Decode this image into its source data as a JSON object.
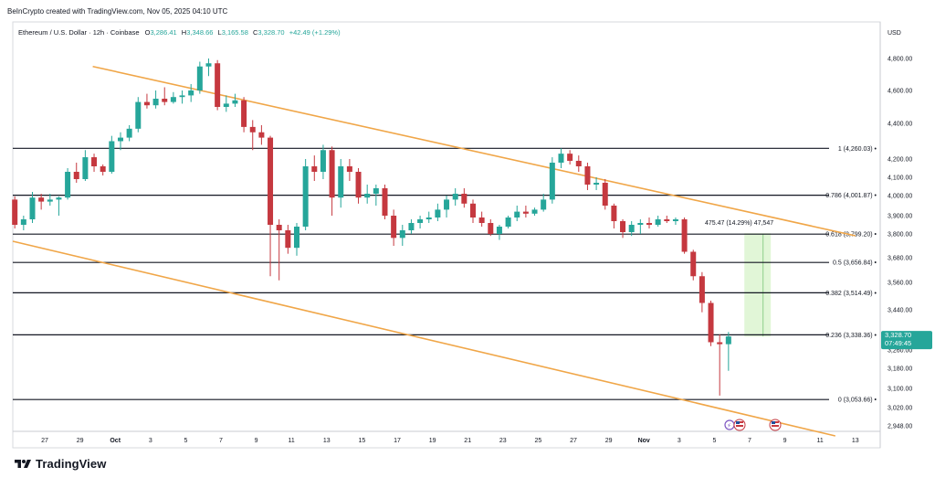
{
  "credit": "BeInCrypto created with TradingView.com, Nov 05, 2025 04:10 UTC",
  "legend": {
    "symbol": "Ethereum / U.S. Dollar · 12h · Coinbase",
    "o_label": "O",
    "o": "3,286.41",
    "h_label": "H",
    "h": "3,348.66",
    "l_label": "L",
    "l": "3,165.58",
    "c_label": "C",
    "c": "3,328.70",
    "change": "+42.49 (+1.29%)"
  },
  "currency": "USD",
  "last_price": {
    "price": "3,328.70",
    "countdown": "07:49:45"
  },
  "measure_label": "475.47 (14.29%) 47,547",
  "logo_text": "TradingView",
  "colors": {
    "up": "#26a69a",
    "down": "#c5383f",
    "channel": "#f0a648",
    "fib": "#131722",
    "measure": "#dcf5d0",
    "measure_edge": "#8ed08a",
    "price_tag": "#26a69a"
  },
  "icons": [
    "event-icon",
    "flag-icon",
    "flag-icon"
  ],
  "chart_data": {
    "type": "candlestick",
    "title": "Ethereum / U.S. Dollar · 12h · Coinbase",
    "y_ticks": [
      "4,800.00",
      "4,600.00",
      "4,400.00",
      "4,200.00",
      "4,100.00",
      "4,000.00",
      "3,900.00",
      "3,800.00",
      "3,680.00",
      "3,560.00",
      "3,440.00",
      "3,340.00",
      "3,260.00",
      "3,180.00",
      "3,100.00",
      "3,020.00",
      "2,948.00"
    ],
    "x_ticks": [
      "27",
      "29",
      "Oct",
      "3",
      "5",
      "7",
      "9",
      "11",
      "13",
      "15",
      "17",
      "19",
      "21",
      "23",
      "25",
      "27",
      "29",
      "Nov",
      "3",
      "5",
      "7",
      "9",
      "11",
      "13"
    ],
    "fib_levels": [
      {
        "label": "1 (4,260.03)",
        "value": 4260.03
      },
      {
        "label": "0.786 (4,001.87)",
        "value": 4001.87
      },
      {
        "label": "0.618 (3,799.20)",
        "value": 3799.2
      },
      {
        "label": "0.5 (3,656.84)",
        "value": 3656.84
      },
      {
        "label": "0.382 (3,514.49)",
        "value": 3514.49
      },
      {
        "label": "0.236 (3,338.36)",
        "value": 3338.36
      },
      {
        "label": "0 (3,053.66)",
        "value": 3053.66
      }
    ],
    "channel": {
      "upper": [
        [
          "Sep 29",
          4850
        ],
        [
          "Nov 12",
          3840
        ]
      ],
      "lower": [
        [
          "Sep 24",
          3820
        ],
        [
          "Nov 12",
          2930
        ]
      ]
    },
    "candles": [
      [
        3980,
        3996,
        3830,
        3850
      ],
      [
        3850,
        3900,
        3820,
        3880
      ],
      [
        3880,
        4020,
        3860,
        3990
      ],
      [
        3990,
        4010,
        3930,
        3970
      ],
      [
        3970,
        4010,
        3950,
        3980
      ],
      [
        3980,
        3995,
        3900,
        3990
      ],
      [
        3990,
        4150,
        3980,
        4130
      ],
      [
        4130,
        4180,
        4070,
        4090
      ],
      [
        4090,
        4250,
        4080,
        4210
      ],
      [
        4210,
        4230,
        4130,
        4160
      ],
      [
        4160,
        4170,
        4110,
        4130
      ],
      [
        4130,
        4330,
        4120,
        4300
      ],
      [
        4300,
        4350,
        4250,
        4320
      ],
      [
        4320,
        4390,
        4300,
        4370
      ],
      [
        4370,
        4560,
        4350,
        4530
      ],
      [
        4530,
        4580,
        4490,
        4510
      ],
      [
        4510,
        4600,
        4490,
        4550
      ],
      [
        4550,
        4620,
        4510,
        4530
      ],
      [
        4530,
        4590,
        4520,
        4560
      ],
      [
        4560,
        4600,
        4520,
        4570
      ],
      [
        4570,
        4640,
        4530,
        4600
      ],
      [
        4600,
        4780,
        4580,
        4750
      ],
      [
        4750,
        4800,
        4690,
        4770
      ],
      [
        4770,
        4790,
        4480,
        4500
      ],
      [
        4500,
        4570,
        4470,
        4520
      ],
      [
        4520,
        4580,
        4500,
        4540
      ],
      [
        4540,
        4560,
        4350,
        4380
      ],
      [
        4380,
        4420,
        4250,
        4350
      ],
      [
        4350,
        4390,
        4280,
        4320
      ],
      [
        4320,
        4330,
        3590,
        3850
      ],
      [
        3850,
        3880,
        3570,
        3820
      ],
      [
        3820,
        3850,
        3700,
        3730
      ],
      [
        3730,
        3860,
        3690,
        3840
      ],
      [
        3840,
        4200,
        3820,
        4160
      ],
      [
        4160,
        4220,
        4080,
        4130
      ],
      [
        4130,
        4280,
        4090,
        4250
      ],
      [
        4250,
        4270,
        3900,
        3990
      ],
      [
        3990,
        4200,
        3940,
        4160
      ],
      [
        4160,
        4200,
        4080,
        4130
      ],
      [
        4130,
        4150,
        3960,
        3990
      ],
      [
        3990,
        4060,
        3960,
        4010
      ],
      [
        4010,
        4060,
        3950,
        4040
      ],
      [
        4040,
        4060,
        3880,
        3900
      ],
      [
        3900,
        3930,
        3740,
        3780
      ],
      [
        3780,
        3850,
        3740,
        3820
      ],
      [
        3820,
        3880,
        3800,
        3860
      ],
      [
        3860,
        3900,
        3830,
        3880
      ],
      [
        3880,
        3920,
        3860,
        3890
      ],
      [
        3890,
        3960,
        3870,
        3930
      ],
      [
        3930,
        4000,
        3890,
        3980
      ],
      [
        3980,
        4040,
        3950,
        4010
      ],
      [
        4010,
        4040,
        3940,
        3960
      ],
      [
        3960,
        3980,
        3860,
        3890
      ],
      [
        3890,
        3920,
        3840,
        3860
      ],
      [
        3860,
        3880,
        3790,
        3800
      ],
      [
        3800,
        3850,
        3770,
        3840
      ],
      [
        3840,
        3900,
        3830,
        3890
      ],
      [
        3890,
        3950,
        3870,
        3920
      ],
      [
        3920,
        3950,
        3890,
        3910
      ],
      [
        3910,
        3940,
        3900,
        3930
      ],
      [
        3930,
        4010,
        3920,
        3980
      ],
      [
        3980,
        4210,
        3960,
        4180
      ],
      [
        4180,
        4260,
        4150,
        4230
      ],
      [
        4230,
        4250,
        4170,
        4190
      ],
      [
        4190,
        4220,
        4130,
        4160
      ],
      [
        4160,
        4180,
        4030,
        4060
      ],
      [
        4060,
        4100,
        4030,
        4070
      ],
      [
        4070,
        4090,
        3930,
        3950
      ],
      [
        3950,
        3960,
        3830,
        3870
      ],
      [
        3870,
        3880,
        3780,
        3810
      ],
      [
        3810,
        3870,
        3790,
        3850
      ],
      [
        3850,
        3880,
        3800,
        3860
      ],
      [
        3860,
        3890,
        3830,
        3850
      ],
      [
        3850,
        3900,
        3840,
        3880
      ],
      [
        3880,
        3900,
        3860,
        3870
      ],
      [
        3870,
        3890,
        3850,
        3880
      ],
      [
        3880,
        3890,
        3700,
        3710
      ],
      [
        3710,
        3720,
        3570,
        3590
      ],
      [
        3590,
        3610,
        3430,
        3470
      ],
      [
        3470,
        3480,
        3280,
        3300
      ],
      [
        3300,
        3340,
        3070,
        3290
      ],
      [
        3290,
        3350,
        3170,
        3330
      ]
    ]
  }
}
